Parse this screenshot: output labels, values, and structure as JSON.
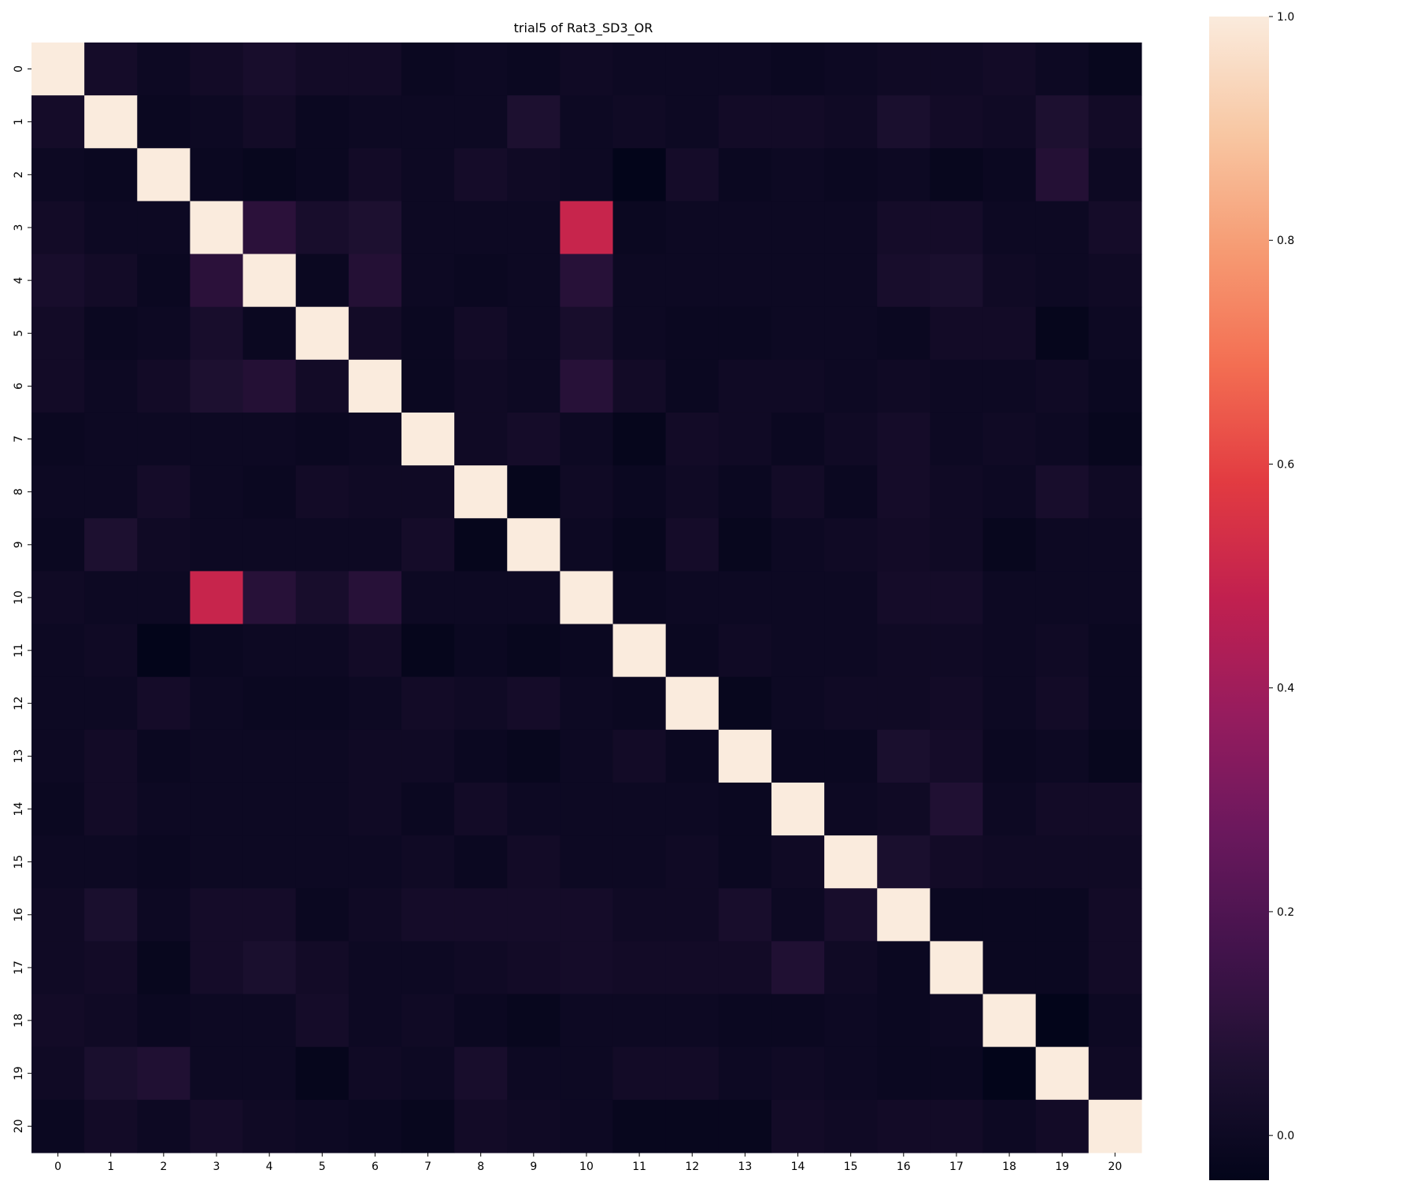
{
  "chart_data": {
    "type": "heatmap",
    "title": "trial5 of Rat3_SD3_OR",
    "xlabel": "",
    "ylabel": "",
    "x_categories": [
      "0",
      "1",
      "2",
      "3",
      "4",
      "5",
      "6",
      "7",
      "8",
      "9",
      "10",
      "11",
      "12",
      "13",
      "14",
      "15",
      "16",
      "17",
      "18",
      "19",
      "20"
    ],
    "y_categories": [
      "0",
      "1",
      "2",
      "3",
      "4",
      "5",
      "6",
      "7",
      "8",
      "9",
      "10",
      "11",
      "12",
      "13",
      "14",
      "15",
      "16",
      "17",
      "18",
      "19",
      "20"
    ],
    "colormap": "rocket",
    "vmin": -0.04,
    "vmax": 1.0,
    "colorbar_ticks": [
      {
        "value": 0.0,
        "label": "0.0"
      },
      {
        "value": 0.2,
        "label": "0.2"
      },
      {
        "value": 0.4,
        "label": "0.4"
      },
      {
        "value": 0.6,
        "label": "0.6"
      },
      {
        "value": 0.8,
        "label": "0.8"
      },
      {
        "value": 1.0,
        "label": "1.0"
      }
    ],
    "values": [
      [
        1.0,
        0.03,
        0.0,
        0.02,
        0.04,
        0.02,
        0.02,
        -0.01,
        0.0,
        -0.01,
        0.01,
        0.0,
        0.0,
        0.0,
        -0.01,
        0.0,
        0.01,
        0.01,
        0.02,
        0.0,
        -0.02
      ],
      [
        0.03,
        1.0,
        -0.01,
        0.0,
        0.02,
        -0.01,
        0.0,
        0.0,
        0.0,
        0.06,
        0.0,
        0.01,
        0.0,
        0.02,
        0.02,
        0.01,
        0.05,
        0.02,
        0.01,
        0.06,
        0.02
      ],
      [
        0.0,
        -0.01,
        1.0,
        -0.01,
        -0.02,
        -0.01,
        0.02,
        0.0,
        0.03,
        0.01,
        0.0,
        -0.04,
        0.03,
        -0.01,
        0.0,
        -0.01,
        0.0,
        -0.02,
        -0.01,
        0.08,
        0.0
      ],
      [
        0.02,
        0.0,
        0.0,
        1.0,
        0.1,
        0.04,
        0.06,
        0.0,
        0.0,
        0.0,
        0.5,
        -0.01,
        0.0,
        0.0,
        0.0,
        0.0,
        0.03,
        0.03,
        0.0,
        0.0,
        0.03
      ],
      [
        0.04,
        0.02,
        -0.01,
        0.1,
        1.0,
        -0.01,
        0.08,
        0.0,
        -0.01,
        0.0,
        0.09,
        0.0,
        0.0,
        0.0,
        0.0,
        0.0,
        0.04,
        0.05,
        0.01,
        0.0,
        0.01
      ],
      [
        0.02,
        -0.01,
        0.0,
        0.04,
        -0.01,
        1.0,
        0.02,
        -0.01,
        0.02,
        0.0,
        0.04,
        0.0,
        -0.01,
        -0.01,
        0.0,
        0.0,
        -0.01,
        0.02,
        0.02,
        -0.03,
        0.0
      ],
      [
        0.02,
        0.0,
        0.02,
        0.06,
        0.08,
        0.02,
        1.0,
        -0.01,
        0.01,
        0.0,
        0.09,
        0.02,
        -0.01,
        0.01,
        0.01,
        0.0,
        0.01,
        0.0,
        0.0,
        0.01,
        -0.01
      ],
      [
        -0.01,
        0.0,
        0.0,
        0.0,
        0.0,
        -0.01,
        0.0,
        1.0,
        0.01,
        0.03,
        0.0,
        -0.03,
        0.02,
        0.01,
        -0.01,
        0.01,
        0.03,
        0.0,
        0.01,
        0.0,
        -0.02
      ],
      [
        0.0,
        0.0,
        0.03,
        0.0,
        -0.01,
        0.02,
        0.01,
        0.01,
        1.0,
        -0.03,
        0.01,
        -0.01,
        0.01,
        -0.01,
        0.02,
        -0.01,
        0.03,
        0.01,
        0.0,
        0.04,
        0.01
      ],
      [
        -0.01,
        0.06,
        0.01,
        0.0,
        0.0,
        0.0,
        0.0,
        0.03,
        -0.03,
        1.0,
        0.0,
        -0.02,
        0.03,
        -0.02,
        0.0,
        0.01,
        0.02,
        0.01,
        -0.02,
        0.0,
        0.0
      ],
      [
        0.01,
        0.0,
        0.0,
        0.5,
        0.09,
        0.04,
        0.09,
        0.0,
        0.0,
        0.0,
        1.0,
        -0.01,
        0.0,
        0.0,
        0.0,
        0.0,
        0.03,
        0.03,
        0.0,
        0.0,
        0.0
      ],
      [
        0.0,
        0.01,
        -0.04,
        -0.01,
        0.0,
        0.0,
        0.02,
        -0.03,
        -0.01,
        -0.02,
        -0.01,
        1.0,
        -0.01,
        0.01,
        0.0,
        0.0,
        0.01,
        0.01,
        0.0,
        0.01,
        -0.01
      ],
      [
        0.0,
        0.0,
        0.03,
        0.0,
        -0.01,
        -0.01,
        0.0,
        0.02,
        0.01,
        0.03,
        0.0,
        -0.01,
        1.0,
        -0.02,
        0.0,
        0.01,
        0.01,
        0.02,
        0.0,
        0.02,
        -0.01
      ],
      [
        0.0,
        0.02,
        -0.01,
        0.0,
        0.0,
        0.0,
        0.01,
        0.01,
        -0.01,
        -0.02,
        0.0,
        0.02,
        -0.01,
        1.0,
        -0.01,
        -0.01,
        0.05,
        0.03,
        -0.01,
        0.0,
        -0.02
      ],
      [
        -0.01,
        0.02,
        0.0,
        0.0,
        0.0,
        0.0,
        0.01,
        -0.01,
        0.02,
        0.0,
        0.0,
        0.0,
        0.0,
        -0.01,
        1.0,
        0.0,
        0.01,
        0.07,
        0.0,
        0.02,
        0.02
      ],
      [
        0.0,
        0.0,
        -0.01,
        0.0,
        0.0,
        0.0,
        0.0,
        0.01,
        -0.01,
        0.02,
        0.0,
        0.0,
        0.01,
        -0.01,
        0.01,
        1.0,
        0.05,
        0.02,
        0.01,
        0.01,
        0.01
      ],
      [
        0.01,
        0.05,
        0.0,
        0.03,
        0.03,
        -0.01,
        0.01,
        0.03,
        0.03,
        0.03,
        0.03,
        0.01,
        0.01,
        0.04,
        0.0,
        0.04,
        1.0,
        -0.01,
        -0.01,
        -0.01,
        0.02
      ],
      [
        0.01,
        0.02,
        -0.02,
        0.03,
        0.05,
        0.02,
        0.0,
        0.0,
        0.01,
        0.02,
        0.03,
        0.02,
        0.02,
        0.02,
        0.07,
        0.01,
        -0.01,
        1.0,
        -0.01,
        -0.01,
        0.02
      ],
      [
        0.02,
        0.01,
        -0.01,
        0.0,
        0.0,
        0.03,
        0.0,
        0.01,
        -0.01,
        -0.02,
        0.0,
        0.0,
        0.0,
        -0.01,
        -0.01,
        0.0,
        -0.01,
        0.0,
        1.0,
        -0.04,
        0.0
      ],
      [
        0.01,
        0.05,
        0.07,
        0.0,
        0.0,
        -0.03,
        0.01,
        0.0,
        0.04,
        0.0,
        0.0,
        0.02,
        0.02,
        0.0,
        0.01,
        0.0,
        -0.01,
        -0.01,
        -0.04,
        1.0,
        0.01
      ],
      [
        -0.01,
        0.02,
        0.0,
        0.03,
        0.01,
        0.0,
        -0.01,
        -0.02,
        0.02,
        0.01,
        0.0,
        -0.02,
        -0.02,
        -0.02,
        0.02,
        0.01,
        0.02,
        0.02,
        0.0,
        0.02,
        1.0
      ]
    ]
  }
}
